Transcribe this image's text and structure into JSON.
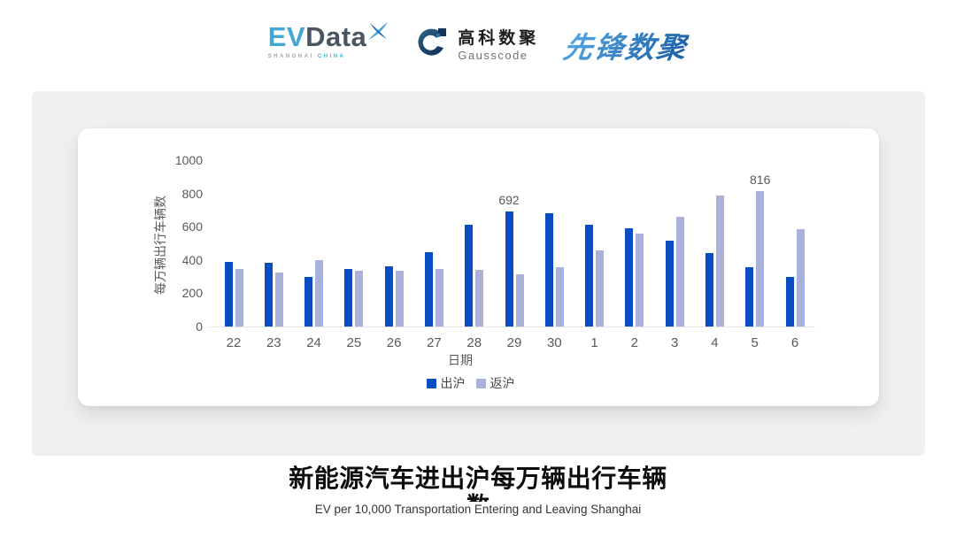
{
  "header": {
    "logos": {
      "evdata": {
        "ev": "EV",
        "data": "Data",
        "sub_left": "SHANGHAI",
        "sub_right": "CHINA"
      },
      "gausscode": {
        "cn": "高科数聚",
        "en": "Gausscode"
      },
      "pioneer": {
        "text": "先锋数聚"
      }
    }
  },
  "chart_data": {
    "type": "bar",
    "title": "新能源汽车进出沪每万辆出行车辆数",
    "subtitle": "EV per 10,000 Transportation Entering and Leaving Shanghai",
    "categories": [
      "22",
      "23",
      "24",
      "25",
      "26",
      "27",
      "28",
      "29",
      "30",
      "1",
      "2",
      "3",
      "4",
      "5",
      "6"
    ],
    "series": [
      {
        "name": "出沪",
        "color": "#0a4cc2",
        "values": [
          390,
          384,
          297,
          348,
          364,
          448,
          610,
          692,
          680,
          610,
          588,
          515,
          440,
          355,
          300
        ]
      },
      {
        "name": "返沪",
        "color": "#a9b0da",
        "values": [
          344,
          322,
          400,
          337,
          334,
          346,
          340,
          312,
          355,
          455,
          560,
          660,
          788,
          816,
          584
        ]
      }
    ],
    "annotations": [
      {
        "series": 0,
        "index": 7,
        "text": "692"
      },
      {
        "series": 1,
        "index": 13,
        "text": "816"
      }
    ],
    "xlabel": "日期",
    "ylabel": "每万辆出行车辆数",
    "yticks": [
      0,
      200,
      400,
      600,
      800,
      1000
    ],
    "ylim": [
      0,
      1000
    ],
    "grid": false,
    "legend_position": "bottom"
  },
  "footer": {
    "title_line1": "新能源汽车进出沪每万辆出行车辆",
    "title_line2": "数",
    "subtitle": "EV per 10,000 Transportation Entering and Leaving Shanghai"
  },
  "colors": {
    "bar_primary": "#0a4cc2",
    "bar_secondary": "#a9b0da",
    "axis_text": "#595959",
    "panel_bg": "#f0f0f0",
    "card_bg": "#ffffff",
    "logo_blue": "#43a7d6",
    "logo_slate": "#4a5561",
    "logo_navy": "#1d3f63"
  }
}
